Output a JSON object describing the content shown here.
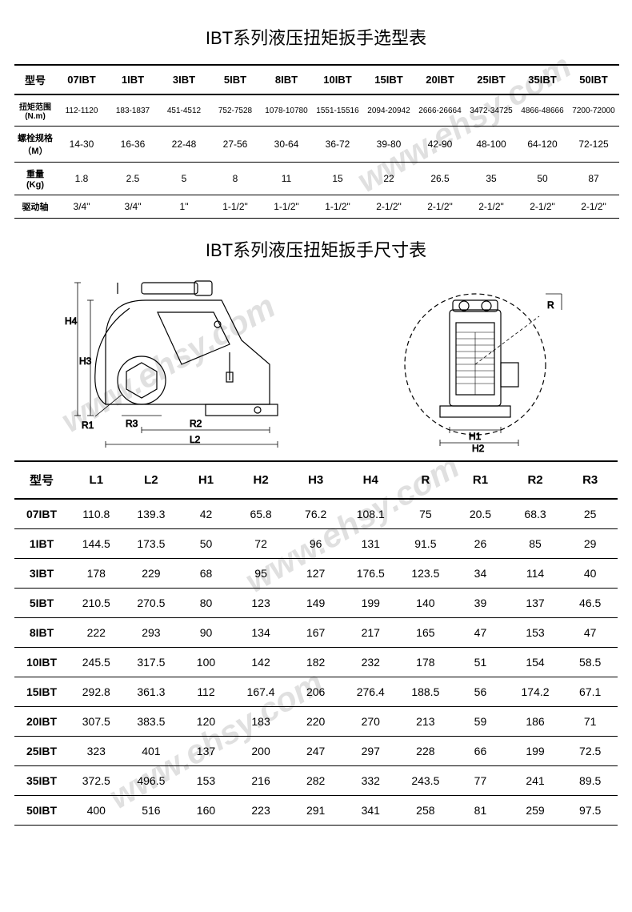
{
  "watermark_text": "www.ehsy.com",
  "selection_table": {
    "title": "IBT系列液压扭矩扳手选型表",
    "header_label": "型号",
    "models": [
      "07IBT",
      "1IBT",
      "3IBT",
      "5IBT",
      "8IBT",
      "10IBT",
      "15IBT",
      "20IBT",
      "25IBT",
      "35IBT",
      "50IBT"
    ],
    "rows": [
      {
        "label": "扭矩范围\n(N.m)",
        "values": [
          "112-1120",
          "183-1837",
          "451-4512",
          "752-7528",
          "1078-10780",
          "1551-15516",
          "2094-20942",
          "2666-26664",
          "3472-34725",
          "4866-48666",
          "7200-72000"
        ]
      },
      {
        "label": "螺栓规格\n（M）",
        "values": [
          "14-30",
          "16-36",
          "22-48",
          "27-56",
          "30-64",
          "36-72",
          "39-80",
          "42-90",
          "48-100",
          "64-120",
          "72-125"
        ]
      },
      {
        "label": "重量\n(Kg)",
        "values": [
          "1.8",
          "2.5",
          "5",
          "8",
          "11",
          "15",
          "22",
          "26.5",
          "35",
          "50",
          "87"
        ]
      },
      {
        "label": "驱动轴",
        "values": [
          "3/4\"",
          "3/4\"",
          "1\"",
          "1-1/2\"",
          "1-1/2\"",
          "1-1/2\"",
          "2-1/2\"",
          "2-1/2\"",
          "2-1/2\"",
          "2-1/2\"",
          "2-1/2\""
        ]
      }
    ]
  },
  "dimension_table": {
    "title": "IBT系列液压扭矩扳手尺寸表",
    "header_label": "型号",
    "columns": [
      "L1",
      "L2",
      "H1",
      "H2",
      "H3",
      "H4",
      "R",
      "R1",
      "R2",
      "R3"
    ],
    "rows": [
      {
        "model": "07IBT",
        "v": [
          "110.8",
          "139.3",
          "42",
          "65.8",
          "76.2",
          "108.1",
          "75",
          "20.5",
          "68.3",
          "25"
        ]
      },
      {
        "model": "1IBT",
        "v": [
          "144.5",
          "173.5",
          "50",
          "72",
          "96",
          "131",
          "91.5",
          "26",
          "85",
          "29"
        ]
      },
      {
        "model": "3IBT",
        "v": [
          "178",
          "229",
          "68",
          "95",
          "127",
          "176.5",
          "123.5",
          "34",
          "114",
          "40"
        ]
      },
      {
        "model": "5IBT",
        "v": [
          "210.5",
          "270.5",
          "80",
          "123",
          "149",
          "199",
          "140",
          "39",
          "137",
          "46.5"
        ]
      },
      {
        "model": "8IBT",
        "v": [
          "222",
          "293",
          "90",
          "134",
          "167",
          "217",
          "165",
          "47",
          "153",
          "47"
        ]
      },
      {
        "model": "10IBT",
        "v": [
          "245.5",
          "317.5",
          "100",
          "142",
          "182",
          "232",
          "178",
          "51",
          "154",
          "58.5"
        ]
      },
      {
        "model": "15IBT",
        "v": [
          "292.8",
          "361.3",
          "112",
          "167.4",
          "206",
          "276.4",
          "188.5",
          "56",
          "174.2",
          "67.1"
        ]
      },
      {
        "model": "20IBT",
        "v": [
          "307.5",
          "383.5",
          "120",
          "183",
          "220",
          "270",
          "213",
          "59",
          "186",
          "71"
        ]
      },
      {
        "model": "25IBT",
        "v": [
          "323",
          "401",
          "137",
          "200",
          "247",
          "297",
          "228",
          "66",
          "199",
          "72.5"
        ]
      },
      {
        "model": "35IBT",
        "v": [
          "372.5",
          "496.5",
          "153",
          "216",
          "282",
          "332",
          "243.5",
          "77",
          "241",
          "89.5"
        ]
      },
      {
        "model": "50IBT",
        "v": [
          "400",
          "516",
          "160",
          "223",
          "291",
          "341",
          "258",
          "81",
          "259",
          "97.5"
        ]
      }
    ]
  },
  "diagram_labels": {
    "left": {
      "H4": "H4",
      "H3": "H3",
      "R1": "R1",
      "R3": "R3",
      "R2": "R2",
      "L2": "L2"
    },
    "right": {
      "R": "R",
      "H1": "H1",
      "H2": "H2"
    }
  },
  "colors": {
    "text": "#000000",
    "background": "#ffffff",
    "border": "#000000",
    "watermark": "rgba(0,0,0,0.12)"
  },
  "typography": {
    "title_fontsize": 22,
    "table_header_fontsize": 13,
    "table_body_fontsize": 12,
    "dim_header_fontsize": 15,
    "dim_body_fontsize": 14
  }
}
